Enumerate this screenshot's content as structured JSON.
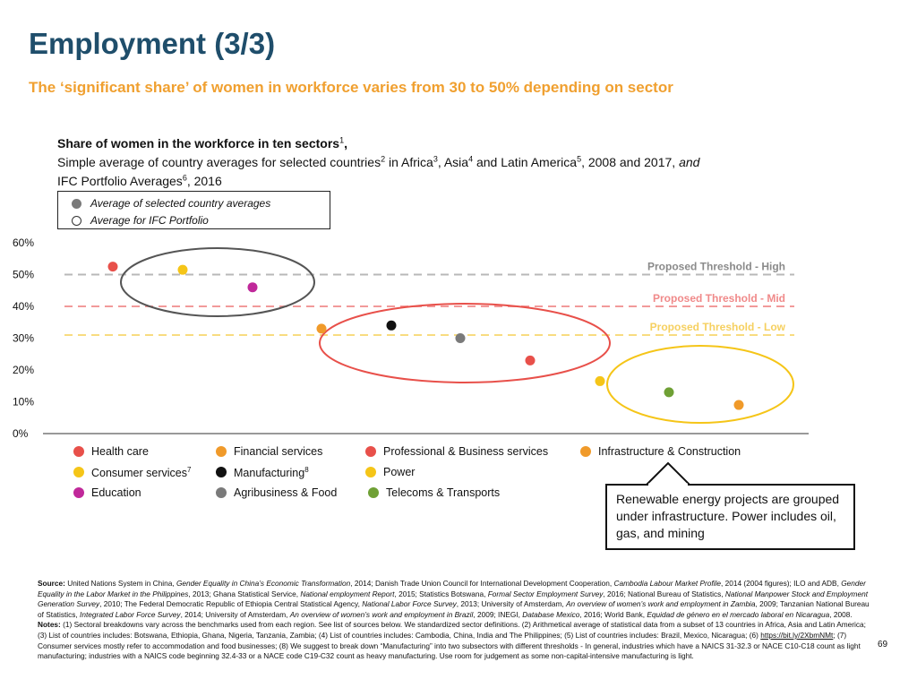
{
  "page": {
    "title": "Employment (3/3)",
    "subtitle": "The ‘significant share’ of women in workforce varies from 30 to 50% depending on sector",
    "page_number": "69"
  },
  "chart_heading": {
    "line1_bold": "Share of women in the workforce in ten sectors",
    "line1_sup": "1",
    "line1_end": ",",
    "line2_a": "Simple average of country averages for selected countries",
    "sup2": "2",
    "line2_b": " in Africa",
    "sup3": "3",
    "line2_c": ", Asia",
    "sup4": "4",
    "line2_d": " and Latin America",
    "sup5": "5",
    "line2_e": ", 2008 and 2017, ",
    "line2_italic": "and",
    "line3_a": "IFC Portfolio Averages",
    "sup6": "6",
    "line3_b": ", 2016"
  },
  "marker_legend": {
    "filled": "Average of selected country averages",
    "hollow": "Average for IFC Portfolio"
  },
  "chart_data": {
    "type": "scatter",
    "ylim": [
      0,
      60
    ],
    "y_ticks": [
      "0%",
      "10%",
      "20%",
      "30%",
      "40%",
      "50%",
      "60%"
    ],
    "points": [
      {
        "sector": "Health care",
        "value": 52.5,
        "color": "#e8504a"
      },
      {
        "sector": "Consumer services",
        "value": 51.5,
        "color": "#f5c518"
      },
      {
        "sector": "Education",
        "value": 46,
        "color": "#c0289a"
      },
      {
        "sector": "Financial services",
        "value": 33,
        "color": "#f09a2a"
      },
      {
        "sector": "Manufacturing",
        "value": 34,
        "color": "#111111"
      },
      {
        "sector": "Agribusiness & Food",
        "value": 30,
        "color": "#7a7a7a"
      },
      {
        "sector": "Professional & Business services",
        "value": 23,
        "color": "#e8504a"
      },
      {
        "sector": "Power",
        "value": 16.5,
        "color": "#f5c518"
      },
      {
        "sector": "Telecoms & Transports",
        "value": 13,
        "color": "#6fa035"
      },
      {
        "sector": "Infrastructure & Construction",
        "value": 9,
        "color": "#f09a2a"
      }
    ],
    "thresholds": [
      {
        "label": "Proposed Threshold - High",
        "value": 50,
        "color": "#b8b8b8",
        "text_color": "#8a8a8a"
      },
      {
        "label": "Proposed Threshold - Mid",
        "value": 40,
        "color": "#f29a9a",
        "text_color": "#f08a8a"
      },
      {
        "label": "Proposed Threshold - Low",
        "value": 31,
        "color": "#f8dc80",
        "text_color": "#f6d060"
      }
    ],
    "groupings": [
      {
        "name": "high-group",
        "color": "#555555"
      },
      {
        "name": "mid-group",
        "color": "#e8504a"
      },
      {
        "name": "low-group",
        "color": "#f5c518"
      }
    ],
    "grid": false
  },
  "sector_legend": [
    {
      "label": "Health care",
      "color": "#e8504a"
    },
    {
      "label": "Financial services",
      "color": "#f09a2a"
    },
    {
      "label": "Professional & Business services",
      "color": "#e8504a"
    },
    {
      "label": "Infrastructure & Construction",
      "color": "#f09a2a"
    },
    {
      "label": "Consumer services",
      "sup": "7",
      "color": "#f5c518"
    },
    {
      "label": "Manufacturing",
      "sup": "8",
      "color": "#111111"
    },
    {
      "label": "Power",
      "color": "#f5c518"
    },
    {
      "label": "Education",
      "color": "#c0289a"
    },
    {
      "label": "Agribusiness & Food",
      "color": "#7a7a7a"
    },
    {
      "label": "Telecoms & Transports",
      "color": "#6fa035"
    }
  ],
  "callout": {
    "text": "Renewable energy projects are grouped under infrastructure. Power includes oil, gas, and mining"
  },
  "source": {
    "label": "Source:",
    "s1": " United Nations System in China, ",
    "i1": "Gender Equality in China’s Economic Transformation",
    "s2": ", 2014; Danish Trade Union Council for International Development Cooperation, ",
    "i2": "Cambodia Labour Market Profile",
    "s3": ", 2014 (2004 figures); ILO and ADB, ",
    "i3": "Gender Equality in the Labor Market in the Philippines",
    "s4": ", 2013; Ghana Statistical Service, ",
    "i4": "National employment Report",
    "s5": ", 2015; Statistics Botswana, ",
    "i5": "Formal Sector Employment Survey",
    "s6": ", 2016; National Bureau of Statistics, ",
    "i6": "National Manpower Stock and Employment Generation Survey",
    "s7": ", 2010; The Federal Democratic Republic of Ethiopia Central Statistical Agency, ",
    "i7": "National Labor Force Survey",
    "s8": ", 2013; University of Amsterdam, ",
    "i8": "An overview of women’s work and employment in Zambia",
    "s9": ", 2009; Tanzanian National Bureau of Statistics, ",
    "i9": "Integrated Labor Force Survey",
    "s10": ", 2014; University of Amsterdam, ",
    "i10": "An overview of women’s work and employment in Brazil",
    "s11": ", 2009; INEGI, ",
    "i11": "Database Mexico",
    "s12": ", 2016; World Bank, ",
    "i12": "Equidad de género en el mercado laboral en Nicaragua",
    "s13": ", 2008.     ",
    "notes_label": "Notes:",
    "n1": " (1) Sectoral breakdowns vary across the benchmarks used from each region. See list of sources below. We standardized sector definitions. (2) Arithmetical average of statistical data from a subset of 13 countries in Africa, Asia and Latin America; (3) List of  countries includes: Botswana, Ethiopia, Ghana, Nigeria, Tanzania, Zambia; (4) List of countries includes: Cambodia, China, India and The Philippines; (5) List of countries includes: Brazil, Mexico, Nicaragua; (6) ",
    "link": "https://bit.ly/2XbmNMt",
    "n2": ";  (7) Consumer services mostly refer to accommodation and food businesses; (8) We suggest to break down “Manufacturing” into two subsectors with different thresholds - In general, industries which have a NAICS 31-32.3 or NACE C10-C18 count as light manufacturing; industries with a NAICS code beginning 32.4-33 or a NACE code C19-C32 count as heavy manufacturing. Use room for judgement as some non-capital-intensive manufacturing is light."
  }
}
